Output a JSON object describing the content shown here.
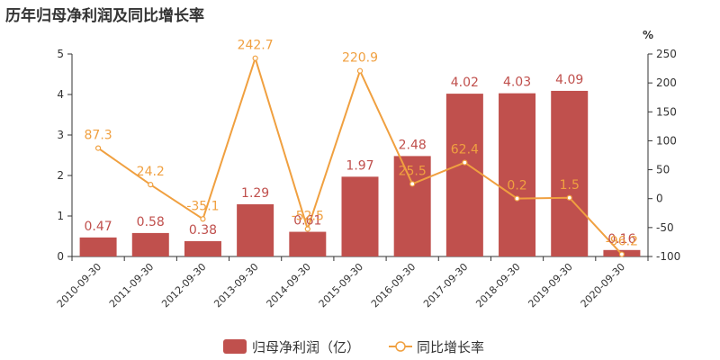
{
  "title": "历年归母净利润及同比增长率",
  "chart_data": {
    "type": "bar",
    "categories": [
      "2010-09-30",
      "2011-09-30",
      "2012-09-30",
      "2013-09-30",
      "2014-09-30",
      "2015-09-30",
      "2016-09-30",
      "2017-09-30",
      "2018-09-30",
      "2019-09-30",
      "2020-09-30"
    ],
    "series": [
      {
        "name": "归母净利润（亿）",
        "type": "bar",
        "axis": "left",
        "color": "#c0504d",
        "values": [
          0.47,
          0.58,
          0.38,
          1.29,
          0.61,
          1.97,
          2.48,
          4.02,
          4.03,
          4.09,
          0.16
        ],
        "labels": [
          "0.47",
          "0.58",
          "0.38",
          "1.29",
          "0.61",
          "1.97",
          "2.48",
          "4.02",
          "4.03",
          "4.09",
          "0.16"
        ]
      },
      {
        "name": "同比增长率",
        "type": "line",
        "axis": "right",
        "color": "#f0a040",
        "values": [
          87.3,
          24.2,
          -35.1,
          242.7,
          -52.5,
          220.9,
          25.5,
          62.4,
          0.2,
          1.5,
          -96.2
        ],
        "labels": [
          "87.3",
          "24.2",
          "-35.1",
          "242.7",
          "-52.5",
          "220.9",
          "25.5",
          "62.4",
          "0.2",
          "1.5",
          "-96.2"
        ]
      }
    ],
    "y_left": {
      "range": [
        0,
        5
      ],
      "ticks": [
        "0",
        "1",
        "2",
        "3",
        "4",
        "5"
      ]
    },
    "y_right": {
      "range": [
        -100,
        250
      ],
      "ticks": [
        "-100",
        "-50",
        "0",
        "50",
        "100",
        "150",
        "200",
        "250"
      ],
      "unit": "%"
    },
    "grid": false,
    "legend": "bottom-center"
  }
}
